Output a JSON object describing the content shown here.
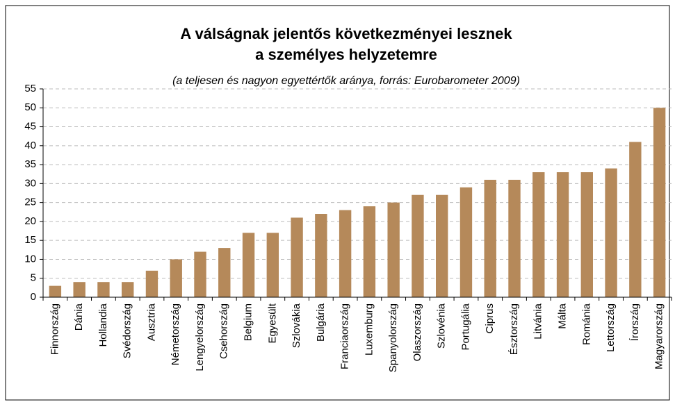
{
  "chart_data": {
    "type": "bar",
    "title": [
      "A válságnak jelentős következményei lesznek",
      "a személyes helyzetemre"
    ],
    "subtitle": "(a teljesen és nagyon egyettértők aránya, forrás: Eurobarometer 2009)",
    "categories": [
      "Finnország",
      "Dánia",
      "Hollandia",
      "Svédország",
      "Ausztria",
      "Németország",
      "Lengyelország",
      "Csehország",
      "Belgium",
      "Egyesült",
      "Szlovákia",
      "Bulgária",
      "Franciaország",
      "Luxemburg",
      "Spanyolország",
      "Olaszország",
      "Szlovénia",
      "Portugália",
      "Ciprus",
      "Észtország",
      "Litvánia",
      "Málta",
      "Románia",
      "Lettország",
      "Írország",
      "Magyarország"
    ],
    "values": [
      3,
      4,
      4,
      4,
      7,
      10,
      12,
      13,
      17,
      17,
      21,
      22,
      23,
      24,
      25,
      27,
      27,
      29,
      31,
      31,
      33,
      33,
      33,
      34,
      41,
      50
    ],
    "color": "#b5895a",
    "ylim": [
      0,
      55
    ],
    "yticks": [
      0,
      5,
      10,
      15,
      20,
      25,
      30,
      35,
      40,
      45,
      50,
      55
    ],
    "grid": true
  }
}
